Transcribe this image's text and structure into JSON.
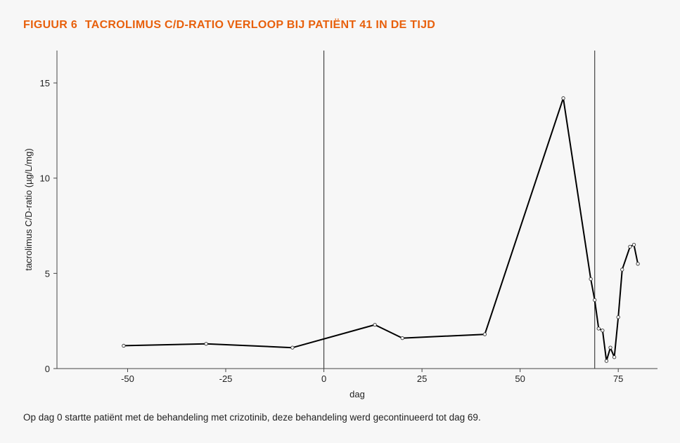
{
  "figure": {
    "number": "FIGUUR 6",
    "title": "TACROLIMUS C/D-RATIO VERLOOP BIJ PATIËNT 41 IN DE TIJD",
    "caption": "Op dag 0 startte patiënt met de behandeling met crizotinib, deze behandeling werd gecontinueerd tot dag 69.",
    "title_color": "#e8600c"
  },
  "chart_data": {
    "type": "line",
    "xlabel": "dag",
    "ylabel": "tacrolimus C/D-ratio (µg/L/mg)",
    "xlim": [
      -68,
      85
    ],
    "ylim": [
      0,
      16.7
    ],
    "xticks": [
      -50,
      -25,
      0,
      25,
      50,
      75
    ],
    "xtick_labels": [
      "-50",
      "-25",
      "0",
      "25",
      "50",
      "75"
    ],
    "yticks": [
      0,
      5,
      10,
      15
    ],
    "ytick_labels": [
      "0",
      "5",
      "10",
      "15"
    ],
    "reference_lines_x": [
      0,
      69
    ],
    "grid": false,
    "line_color": "#000000",
    "series": [
      {
        "x": [
          -51,
          -30,
          -8,
          13,
          20,
          41,
          61,
          68,
          69,
          70,
          71,
          72,
          73,
          74,
          75,
          76,
          78,
          79,
          80
        ],
        "y": [
          1.2,
          1.3,
          1.1,
          2.3,
          1.6,
          1.8,
          14.2,
          4.7,
          3.6,
          2.1,
          2.0,
          0.4,
          1.1,
          0.6,
          2.7,
          5.2,
          6.4,
          6.5,
          5.5
        ]
      }
    ]
  }
}
